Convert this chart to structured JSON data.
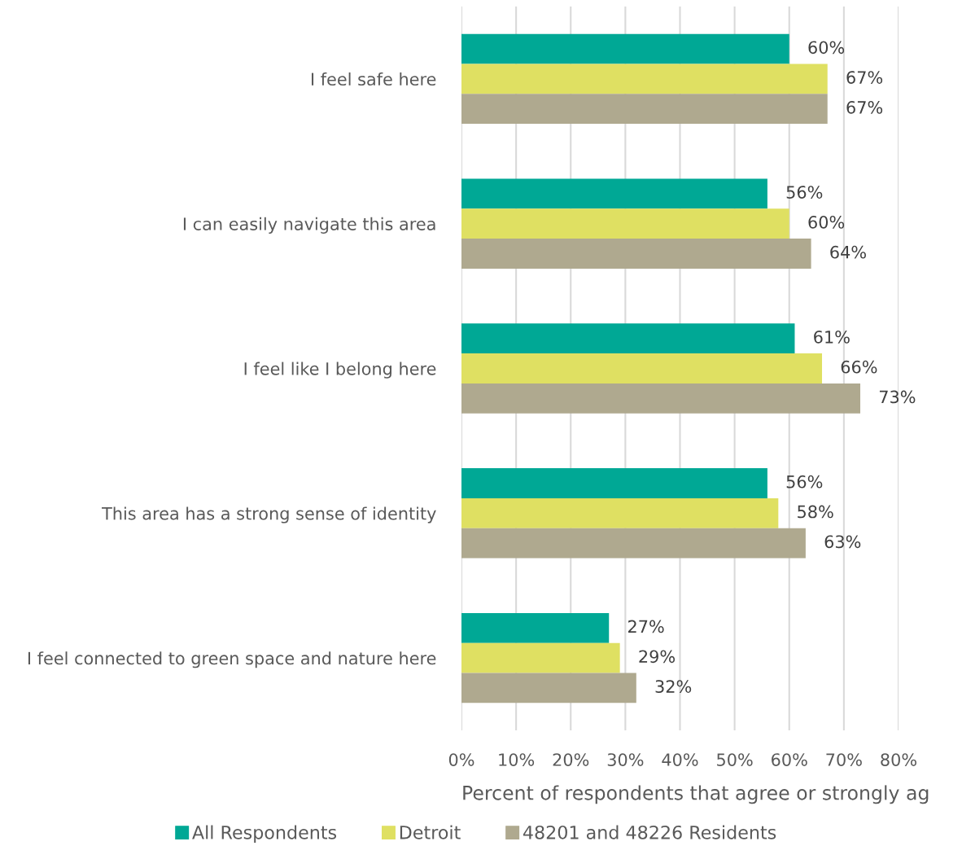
{
  "chart_data": {
    "type": "bar",
    "orientation": "horizontal",
    "categories": [
      "I feel safe here",
      "I can easily navigate this area",
      "I feel like I belong here",
      "This area has a strong sense of identity",
      "I feel connected to green space and nature here"
    ],
    "series": [
      {
        "name": "All Respondents",
        "color": "#00a895",
        "values": [
          60,
          56,
          61,
          56,
          27
        ],
        "value_labels": [
          "60%",
          "56%",
          "61%",
          "56%",
          "27%"
        ]
      },
      {
        "name": "Detroit",
        "color": "#dfe062",
        "values": [
          67,
          60,
          66,
          58,
          29
        ],
        "value_labels": [
          "67%",
          "60%",
          "66%",
          "58%",
          "29%"
        ]
      },
      {
        "name": "48201 and 48226 Residents",
        "color": "#afa98f",
        "values": [
          67,
          64,
          73,
          63,
          32
        ],
        "value_labels": [
          "67%",
          "64%",
          "73%",
          "63%",
          "32%"
        ]
      }
    ],
    "xlabel": "Percent of respondents that agree or strongly ag",
    "xlim": [
      0,
      80
    ],
    "xticks": [
      {
        "value": 0,
        "label": "0%"
      },
      {
        "value": 10,
        "label": "10%"
      },
      {
        "value": 20,
        "label": "20%"
      },
      {
        "value": 30,
        "label": "30%"
      },
      {
        "value": 40,
        "label": "40%"
      },
      {
        "value": 50,
        "label": "50%"
      },
      {
        "value": 60,
        "label": "60%"
      },
      {
        "value": 70,
        "label": "70%"
      },
      {
        "value": 80,
        "label": "80%"
      }
    ],
    "grid": "x",
    "legend": "bottom"
  }
}
